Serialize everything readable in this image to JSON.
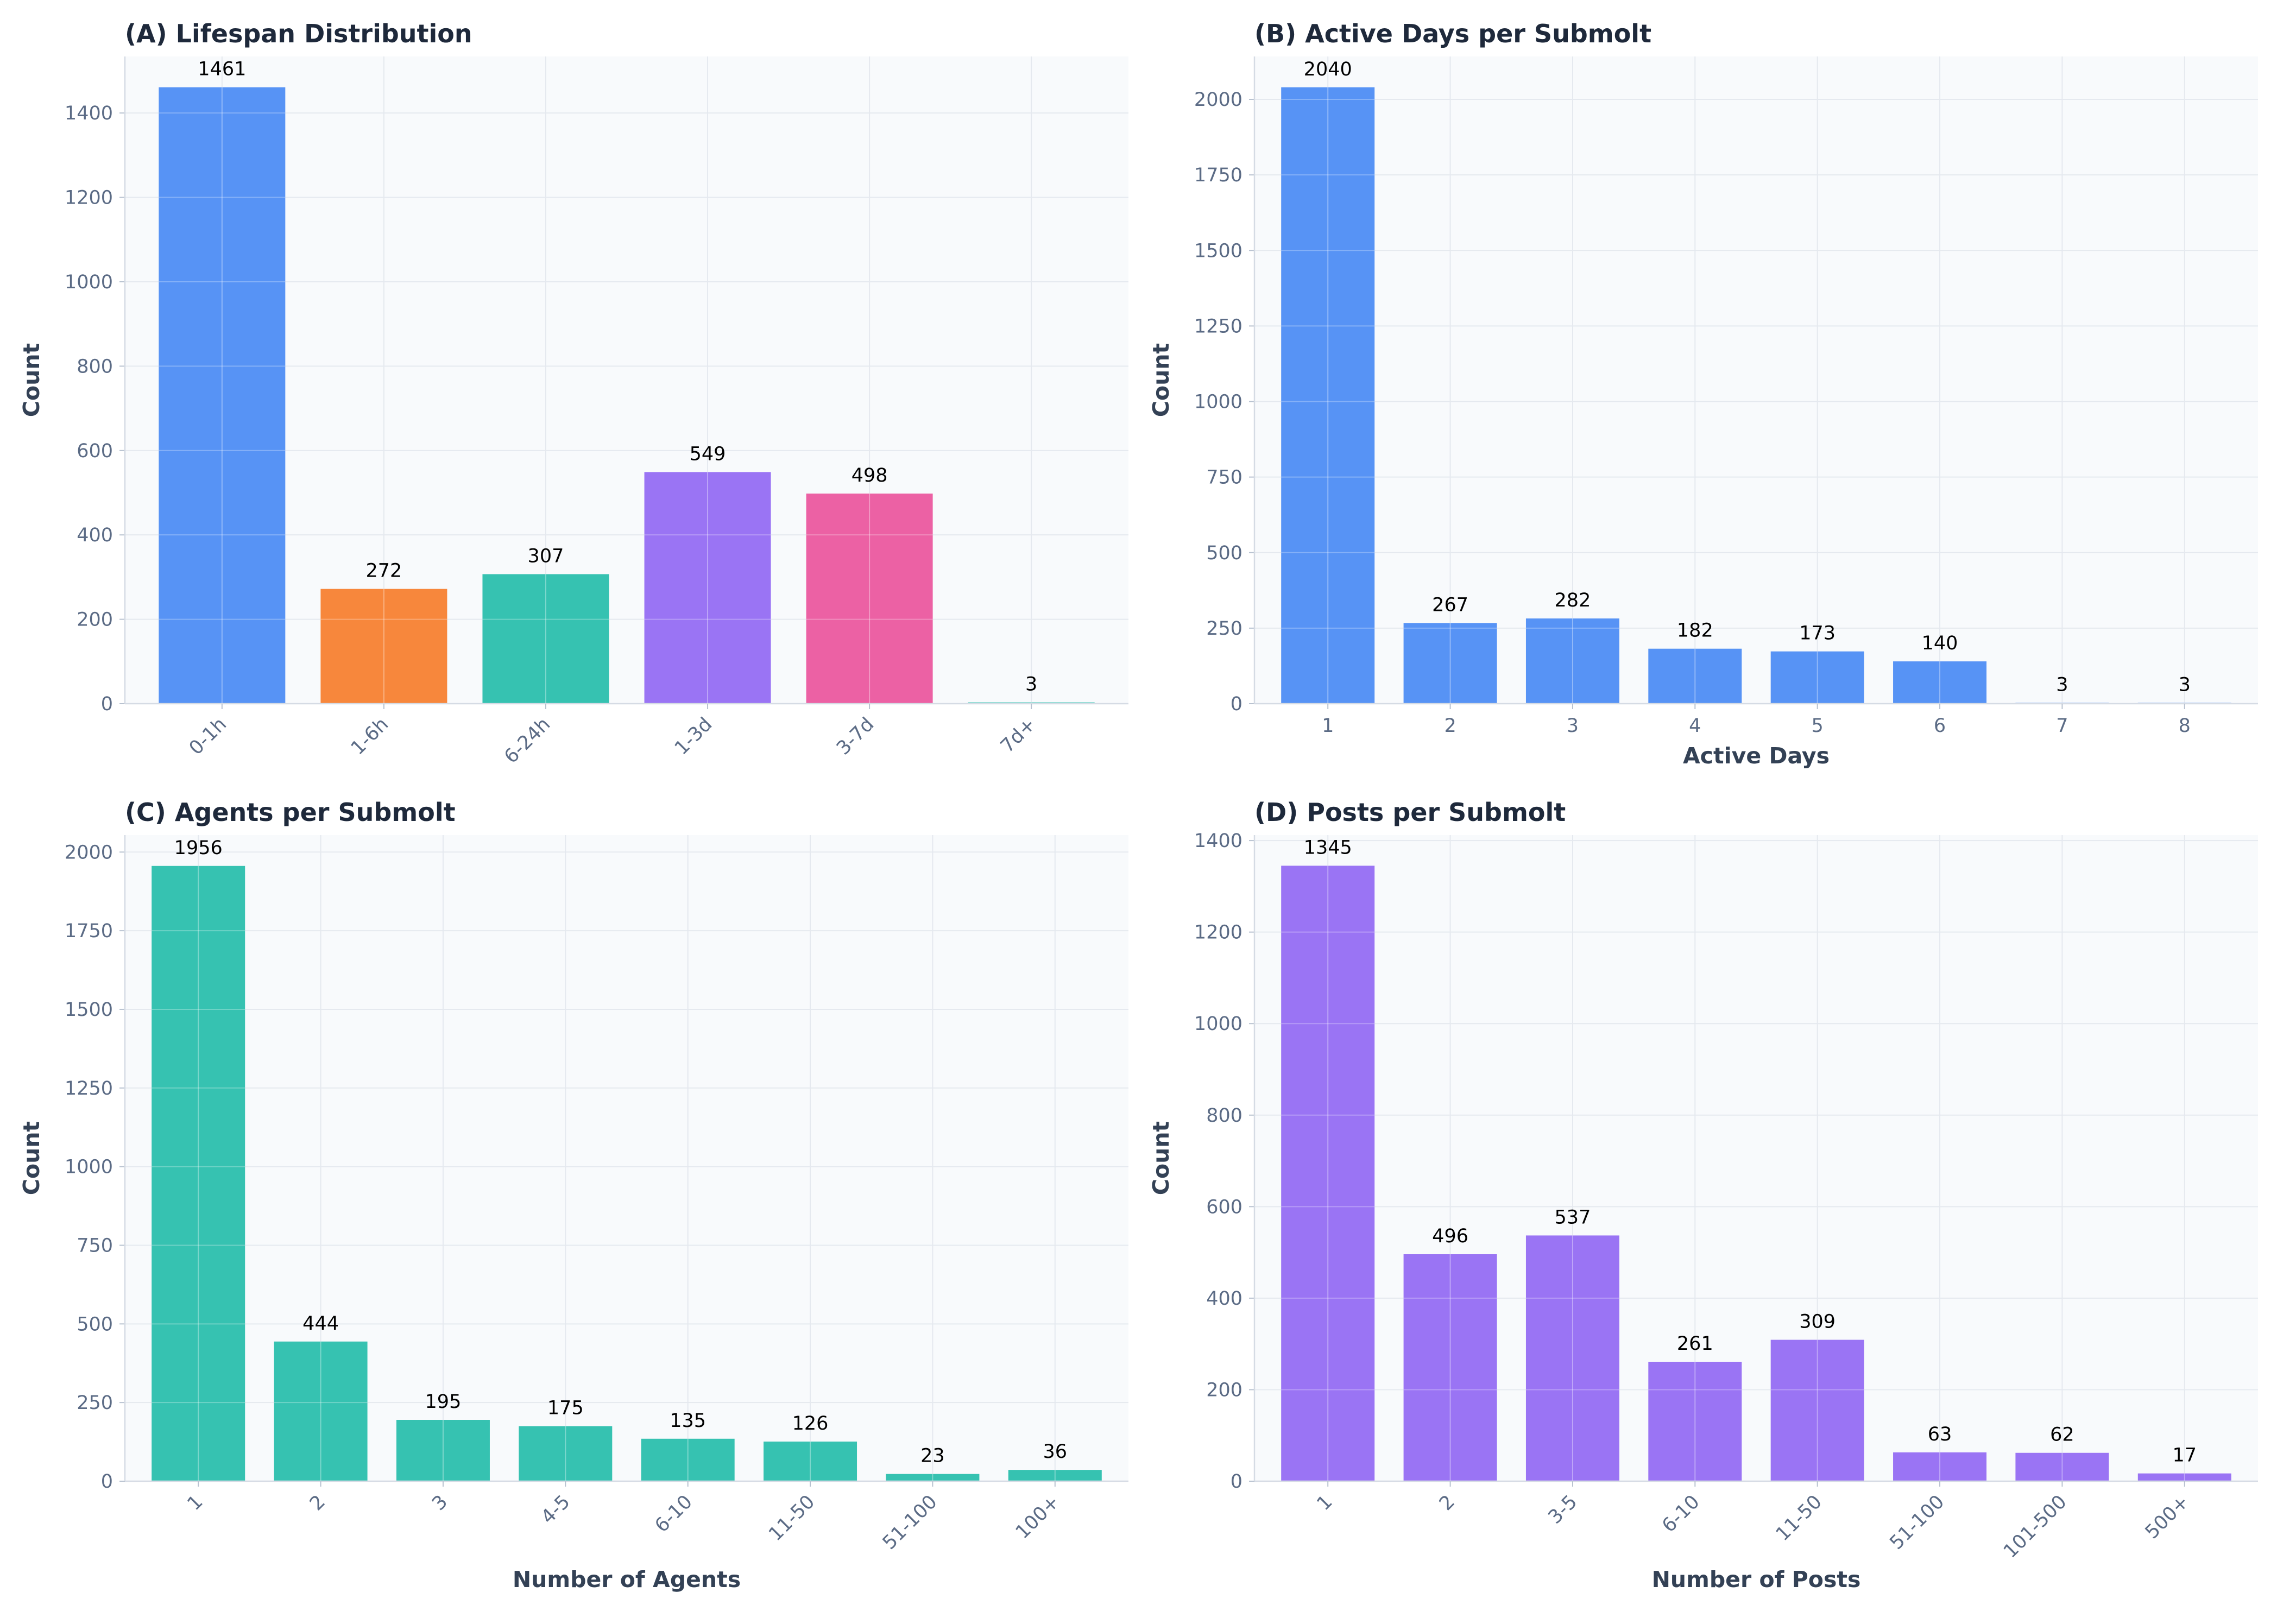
{
  "chart_data": [
    {
      "type": "bar",
      "title": "(A) Lifespan Distribution",
      "xlabel": "",
      "ylabel": "Count",
      "categories": [
        "0-1h",
        "1-6h",
        "6-24h",
        "1-3d",
        "3-7d",
        "7d+"
      ],
      "values": [
        1461,
        272,
        307,
        549,
        498,
        3
      ],
      "bar_colors": [
        "#5793f5",
        "#f7873c",
        "#36c2b1",
        "#9a74f4",
        "#ec61a4",
        "#36c2b1"
      ],
      "ylim": [
        0,
        1534
      ],
      "yticks": [
        0,
        200,
        400,
        600,
        800,
        1000,
        1200,
        1400
      ],
      "grid": true,
      "rotate_xticks": true
    },
    {
      "type": "bar",
      "title": "(B) Active Days per Submolt",
      "xlabel": "Active Days",
      "ylabel": "Count",
      "categories": [
        "1",
        "2",
        "3",
        "4",
        "5",
        "6",
        "7",
        "8"
      ],
      "values": [
        2040,
        267,
        282,
        182,
        173,
        140,
        3,
        3
      ],
      "bar_colors": [
        "#5793f5"
      ],
      "ylim": [
        0,
        2142
      ],
      "yticks": [
        0,
        250,
        500,
        750,
        1000,
        1250,
        1500,
        1750,
        2000
      ],
      "grid": true,
      "rotate_xticks": false
    },
    {
      "type": "bar",
      "title": "(C) Agents per Submolt",
      "xlabel": "Number of Agents",
      "ylabel": "Count",
      "categories": [
        "1",
        "2",
        "3",
        "4-5",
        "6-10",
        "11-50",
        "51-100",
        "100+"
      ],
      "values": [
        1956,
        444,
        195,
        175,
        135,
        126,
        23,
        36
      ],
      "bar_colors": [
        "#36c2b1"
      ],
      "ylim": [
        0,
        2054
      ],
      "yticks": [
        0,
        250,
        500,
        750,
        1000,
        1250,
        1500,
        1750,
        2000
      ],
      "grid": true,
      "rotate_xticks": true
    },
    {
      "type": "bar",
      "title": "(D) Posts per Submolt",
      "xlabel": "Number of Posts",
      "ylabel": "Count",
      "categories": [
        "1",
        "2",
        "3-5",
        "6-10",
        "11-50",
        "51-100",
        "101-500",
        "500+"
      ],
      "values": [
        1345,
        496,
        537,
        261,
        309,
        63,
        62,
        17
      ],
      "bar_colors": [
        "#9a74f4"
      ],
      "ylim": [
        0,
        1412
      ],
      "yticks": [
        0,
        200,
        400,
        600,
        800,
        1000,
        1200,
        1400
      ],
      "grid": true,
      "rotate_xticks": true
    }
  ]
}
